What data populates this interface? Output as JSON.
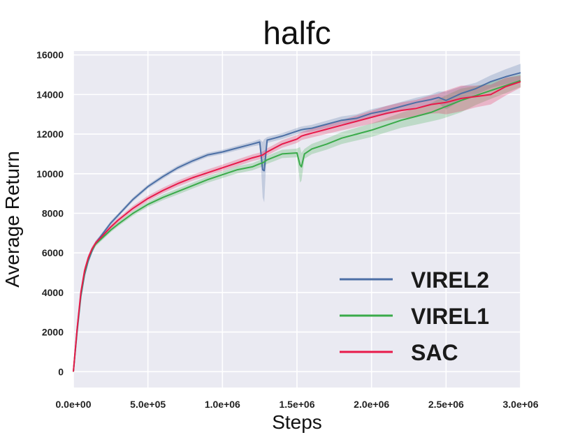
{
  "chart_data": {
    "type": "line",
    "title": "halfc",
    "xlabel": "Steps",
    "ylabel": "Average Return",
    "xlim": [
      0,
      3000000
    ],
    "ylim": [
      -800,
      16200
    ],
    "grid": true,
    "legend_position": "bottom-right",
    "x_ticks": [
      {
        "value": 0,
        "label": "0.0e+00"
      },
      {
        "value": 500000,
        "label": "5.0e+05"
      },
      {
        "value": 1000000,
        "label": "1.0e+06"
      },
      {
        "value": 1500000,
        "label": "1.5e+06"
      },
      {
        "value": 2000000,
        "label": "2.0e+06"
      },
      {
        "value": 2500000,
        "label": "2.5e+06"
      },
      {
        "value": 3000000,
        "label": "3.0e+06"
      }
    ],
    "y_ticks": [
      {
        "value": 0,
        "label": "0"
      },
      {
        "value": 2000,
        "label": "2000"
      },
      {
        "value": 4000,
        "label": "4000"
      },
      {
        "value": 6000,
        "label": "6000"
      },
      {
        "value": 8000,
        "label": "8000"
      },
      {
        "value": 10000,
        "label": "10000"
      },
      {
        "value": 12000,
        "label": "12000"
      },
      {
        "value": 14000,
        "label": "14000"
      },
      {
        "value": 16000,
        "label": "16000"
      }
    ],
    "x": [
      0,
      25000,
      50000,
      75000,
      100000,
      125000,
      150000,
      200000,
      250000,
      300000,
      400000,
      500000,
      600000,
      700000,
      800000,
      900000,
      1000000,
      1100000,
      1200000,
      1250000,
      1270000,
      1280000,
      1300000,
      1350000,
      1400000,
      1500000,
      1520000,
      1530000,
      1550000,
      1600000,
      1700000,
      1800000,
      1900000,
      2000000,
      2100000,
      2200000,
      2300000,
      2400000,
      2450000,
      2500000,
      2600000,
      2700000,
      2800000,
      2900000,
      3000000
    ],
    "series": [
      {
        "name": "VIREL2",
        "color": "#4c6fa5",
        "values": [
          0,
          2000,
          3800,
          4900,
          5600,
          6100,
          6500,
          7000,
          7500,
          7900,
          8700,
          9350,
          9850,
          10300,
          10650,
          10950,
          11100,
          11300,
          11500,
          11600,
          10200,
          10150,
          11700,
          11800,
          11900,
          12150,
          12200,
          12220,
          12250,
          12300,
          12500,
          12700,
          12800,
          13050,
          13200,
          13400,
          13600,
          13750,
          13850,
          13700,
          14050,
          14300,
          14650,
          14900,
          15100
        ],
        "band": [
          0,
          200,
          200,
          180,
          150,
          130,
          110,
          100,
          100,
          100,
          100,
          100,
          110,
          110,
          110,
          110,
          110,
          120,
          120,
          150,
          1400,
          1600,
          150,
          150,
          150,
          160,
          160,
          160,
          160,
          170,
          180,
          190,
          200,
          210,
          220,
          230,
          240,
          260,
          300,
          450,
          350,
          300,
          320,
          380,
          450
        ]
      },
      {
        "name": "VIREL1",
        "color": "#3aab4a",
        "values": [
          0,
          2100,
          3900,
          5000,
          5700,
          6150,
          6450,
          6800,
          7150,
          7450,
          8000,
          8450,
          8800,
          9100,
          9400,
          9700,
          9950,
          10200,
          10350,
          10500,
          10550,
          10600,
          10700,
          10850,
          11000,
          11050,
          10450,
          10350,
          11000,
          11250,
          11500,
          11800,
          12000,
          12200,
          12450,
          12700,
          12900,
          13100,
          13250,
          13400,
          13700,
          13950,
          14200,
          14450,
          14700
        ],
        "band": [
          0,
          200,
          200,
          180,
          150,
          130,
          120,
          110,
          110,
          110,
          120,
          130,
          140,
          150,
          150,
          160,
          170,
          180,
          180,
          190,
          190,
          190,
          200,
          210,
          210,
          220,
          900,
          700,
          250,
          260,
          280,
          300,
          320,
          340,
          360,
          380,
          420,
          460,
          520,
          560,
          600,
          480,
          420,
          380,
          320
        ]
      },
      {
        "name": "SAC",
        "color": "#e8194a",
        "values": [
          0,
          2150,
          4000,
          5100,
          5750,
          6200,
          6500,
          6900,
          7300,
          7650,
          8250,
          8750,
          9150,
          9500,
          9800,
          10050,
          10300,
          10550,
          10800,
          10900,
          10950,
          11000,
          11100,
          11300,
          11500,
          11750,
          11850,
          11900,
          11950,
          12050,
          12250,
          12450,
          12650,
          12850,
          13050,
          13200,
          13300,
          13500,
          13550,
          13600,
          13800,
          13900,
          14000,
          14400,
          14650
        ],
        "band": [
          0,
          200,
          200,
          180,
          150,
          130,
          120,
          110,
          110,
          120,
          130,
          140,
          140,
          150,
          150,
          160,
          160,
          170,
          170,
          170,
          170,
          170,
          180,
          180,
          190,
          200,
          200,
          200,
          210,
          220,
          240,
          260,
          290,
          330,
          370,
          400,
          430,
          460,
          500,
          600,
          650,
          550,
          500,
          450,
          300
        ]
      }
    ]
  }
}
